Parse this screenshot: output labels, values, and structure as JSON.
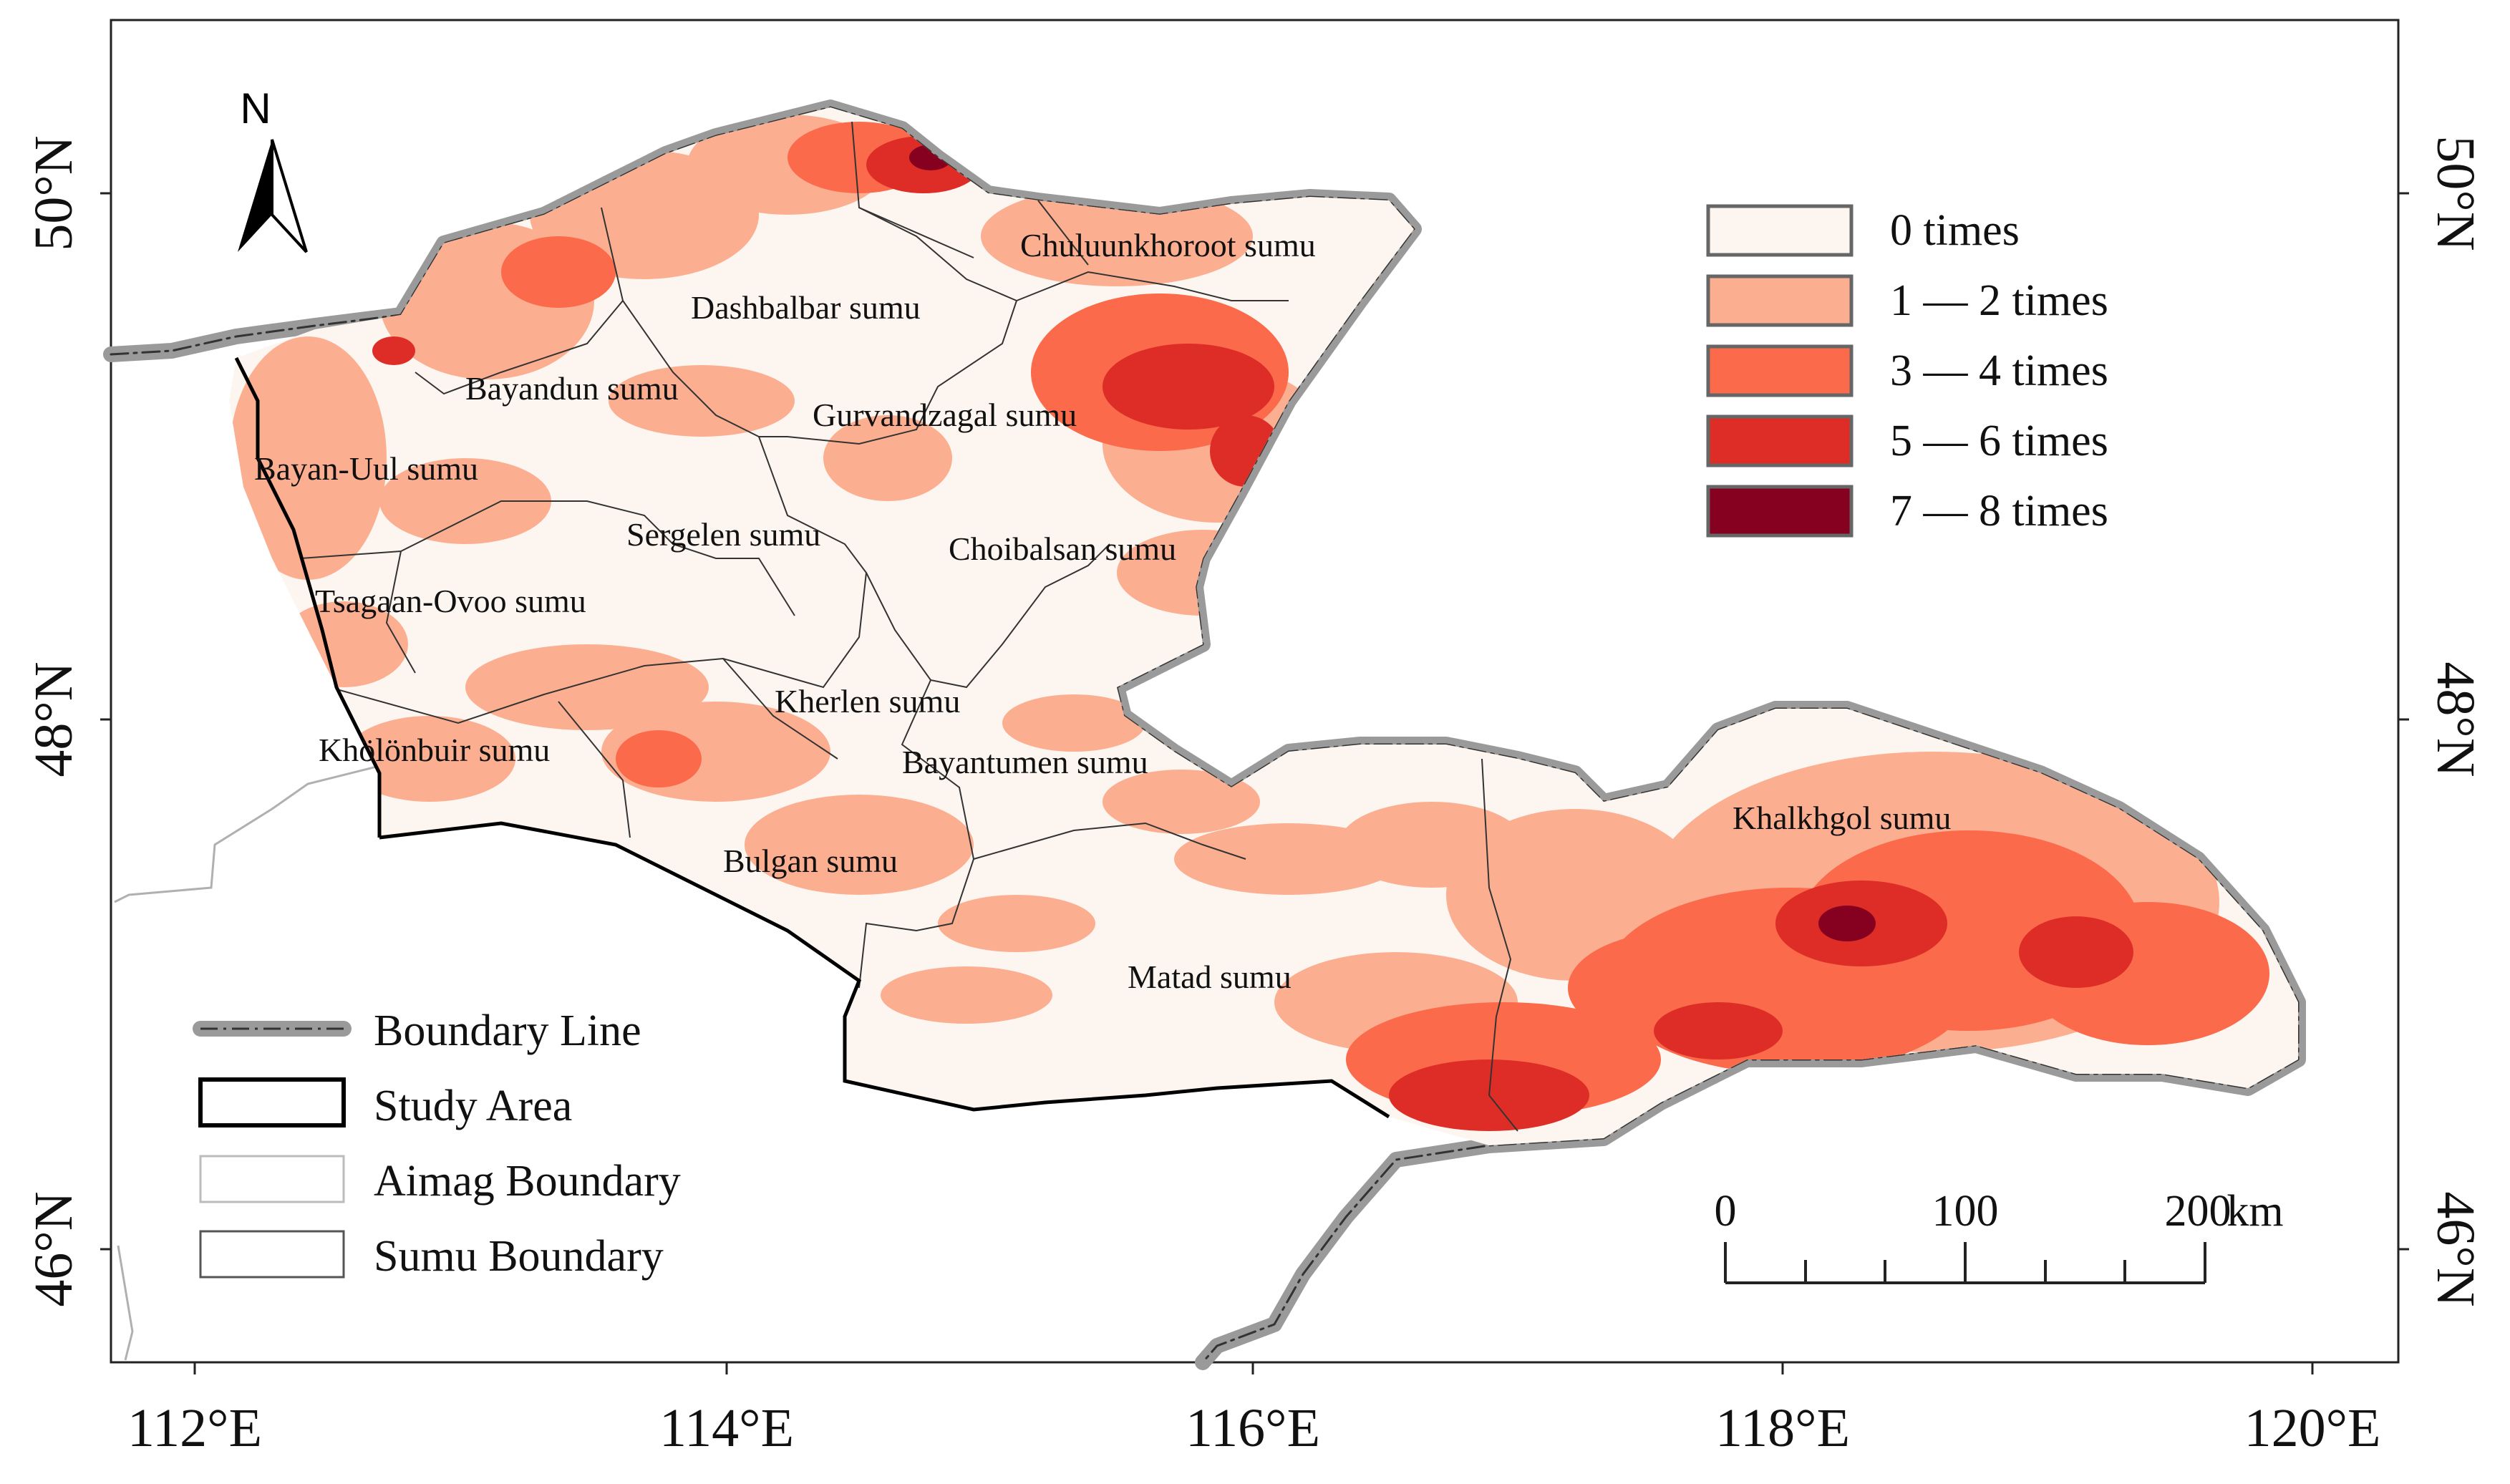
{
  "map": {
    "north_label": "N",
    "lon_ticks": [
      "112°E",
      "114°E",
      "116°E",
      "118°E",
      "120°E"
    ],
    "lat_ticks": [
      "50°N",
      "48°N",
      "46°N"
    ],
    "sumu_labels": [
      "Chuluunkhoroot sumu",
      "Dashbalbar sumu",
      "Bayandun sumu",
      "Gurvandzagal sumu",
      "Bayan-Uul sumu",
      "Sergelen sumu",
      "Choibalsan sumu",
      "Tsagaan-Ovoo sumu",
      "Kherlen sumu",
      "Khölönbuir sumu",
      "Bayantumen sumu",
      "Bulgan sumu",
      "Khalkhgol sumu",
      "Matad sumu"
    ]
  },
  "legend_frequency": {
    "items": [
      {
        "label": "0 times",
        "color": "#fdf6f0"
      },
      {
        "label": "1 — 2 times",
        "color": "#fcae91"
      },
      {
        "label": "3 — 4 times",
        "color": "#fb6a4a"
      },
      {
        "label": "5 — 6 times",
        "color": "#de2d26"
      },
      {
        "label": "7 — 8 times",
        "color": "#860020"
      }
    ]
  },
  "legend_boundaries": {
    "items": [
      {
        "label": "Boundary Line",
        "icon": "boundary-line-icon"
      },
      {
        "label": "Study Area",
        "icon": "study-area-icon"
      },
      {
        "label": "Aimag Boundary",
        "icon": "aimag-boundary-icon"
      },
      {
        "label": "Sumu Boundary",
        "icon": "sumu-boundary-icon"
      }
    ]
  },
  "scale_bar": {
    "ticks": [
      "0",
      "100",
      "200"
    ],
    "unit": "km"
  }
}
